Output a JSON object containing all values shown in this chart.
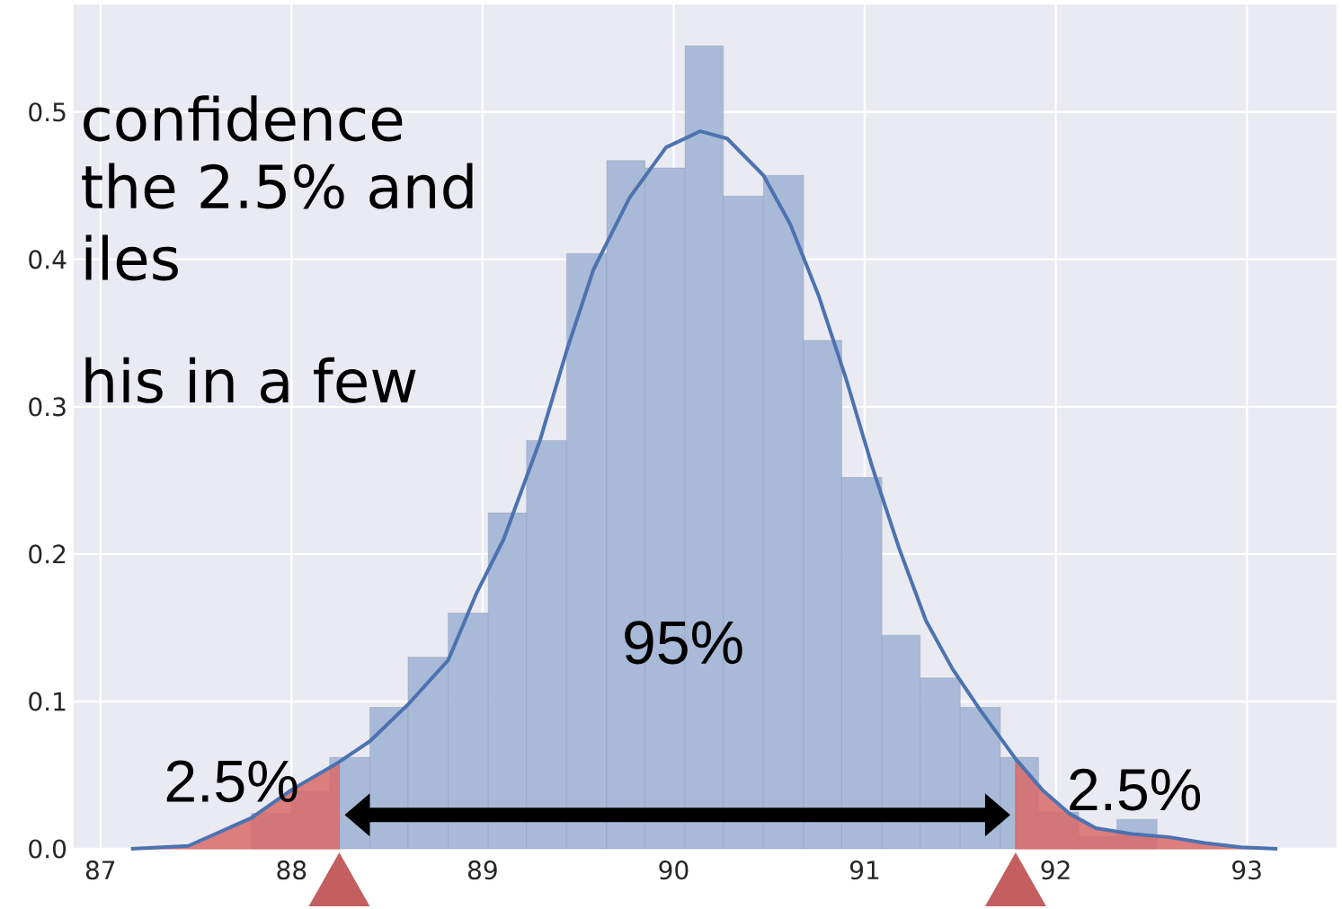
{
  "chart_data": {
    "type": "histogram",
    "series": [
      {
        "color": "#a9bad8",
        "bins": [
          87.79,
          88.0,
          88.2,
          88.41,
          88.61,
          88.82,
          89.03,
          89.23,
          89.44,
          89.65,
          89.85,
          90.06,
          90.26,
          90.47,
          90.68,
          90.88,
          91.09,
          91.29,
          91.5,
          91.71,
          91.91,
          92.12,
          92.32,
          92.53
        ],
        "values": [
          0.024,
          0.039,
          0.062,
          0.096,
          0.13,
          0.16,
          0.228,
          0.277,
          0.404,
          0.467,
          0.462,
          0.545,
          0.443,
          0.457,
          0.345,
          0.252,
          0.145,
          0.116,
          0.096,
          0.062,
          0.025,
          0.008,
          0.02
        ]
      },
      {
        "type": "area",
        "color": "#d96a6a",
        "x": [
          87.16,
          87.46,
          87.79,
          88.0,
          88.25
        ],
        "values": [
          0.0,
          0.002,
          0.021,
          0.04,
          0.059
        ]
      },
      {
        "type": "area",
        "color": "#d96a6a",
        "x": [
          91.79,
          91.93,
          92.07,
          92.21,
          92.4,
          92.59,
          92.78,
          92.97,
          93.16
        ],
        "values": [
          0.061,
          0.04,
          0.024,
          0.014,
          0.01,
          0.008,
          0.004,
          0.001,
          0.0
        ]
      },
      {
        "type": "line",
        "color": "#4c72b0",
        "x": [
          87.16,
          87.46,
          87.79,
          88.0,
          88.25,
          88.41,
          88.61,
          88.82,
          88.97,
          89.11,
          89.3,
          89.44,
          89.58,
          89.77,
          89.96,
          90.14,
          90.28,
          90.47,
          90.61,
          90.76,
          90.9,
          91.04,
          91.18,
          91.32,
          91.46,
          91.6,
          91.79,
          91.93,
          92.07,
          92.21,
          92.4,
          92.59,
          92.78,
          92.97,
          93.16
        ],
        "values": [
          0.0,
          0.002,
          0.021,
          0.04,
          0.059,
          0.073,
          0.098,
          0.128,
          0.174,
          0.21,
          0.277,
          0.338,
          0.393,
          0.442,
          0.476,
          0.487,
          0.482,
          0.457,
          0.424,
          0.375,
          0.32,
          0.259,
          0.204,
          0.155,
          0.122,
          0.095,
          0.061,
          0.04,
          0.024,
          0.014,
          0.01,
          0.008,
          0.004,
          0.001,
          0.0
        ]
      }
    ],
    "xlim": [
      86.86,
      93.47
    ],
    "ylim": [
      0,
      0.573
    ],
    "xticks": [
      87,
      88,
      89,
      90,
      91,
      92,
      93
    ],
    "yticks": [
      {
        "value": 0,
        "label": "0.0"
      },
      0.1,
      0.2,
      0.3,
      0.4,
      0.5
    ],
    "grid": true,
    "annotations": [
      "confidence",
      "the 2.5% and",
      "iles",
      "his in a few",
      {
        "text": "95%",
        "x": 90.05,
        "y": 0.14
      },
      "2.5%",
      "2.5%"
    ]
  }
}
